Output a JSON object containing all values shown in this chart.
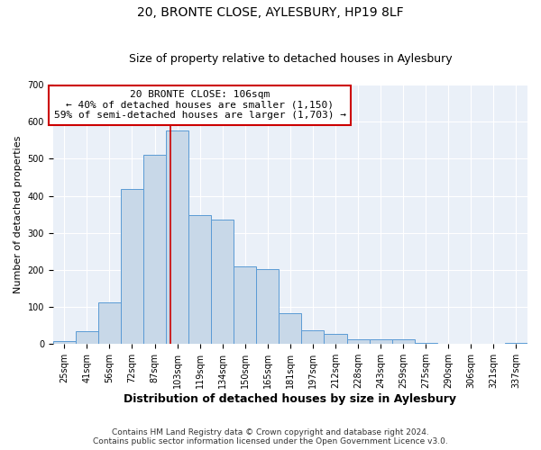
{
  "title": "20, BRONTE CLOSE, AYLESBURY, HP19 8LF",
  "subtitle": "Size of property relative to detached houses in Aylesbury",
  "xlabel": "Distribution of detached houses by size in Aylesbury",
  "ylabel": "Number of detached properties",
  "bins": [
    "25sqm",
    "41sqm",
    "56sqm",
    "72sqm",
    "87sqm",
    "103sqm",
    "119sqm",
    "134sqm",
    "150sqm",
    "165sqm",
    "181sqm",
    "197sqm",
    "212sqm",
    "228sqm",
    "243sqm",
    "259sqm",
    "275sqm",
    "290sqm",
    "306sqm",
    "321sqm",
    "337sqm"
  ],
  "values": [
    8,
    35,
    113,
    418,
    510,
    575,
    347,
    335,
    210,
    203,
    83,
    37,
    27,
    13,
    13,
    13,
    2,
    1,
    1,
    1,
    3
  ],
  "bar_color": "#c8d8e8",
  "bar_edge_color": "#5b9bd5",
  "annotation_title": "20 BRONTE CLOSE: 106sqm",
  "annotation_line1": "← 40% of detached houses are smaller (1,150)",
  "annotation_line2": "59% of semi-detached houses are larger (1,703) →",
  "box_edge_color": "#cc0000",
  "vline_color": "#cc0000",
  "ylim": [
    0,
    700
  ],
  "yticks": [
    0,
    100,
    200,
    300,
    400,
    500,
    600,
    700
  ],
  "background_color": "#eaf0f8",
  "footer1": "Contains HM Land Registry data © Crown copyright and database right 2024.",
  "footer2": "Contains public sector information licensed under the Open Government Licence v3.0.",
  "title_fontsize": 10,
  "subtitle_fontsize": 9,
  "xlabel_fontsize": 9,
  "ylabel_fontsize": 8,
  "tick_fontsize": 7,
  "annotation_fontsize": 8,
  "footer_fontsize": 6.5
}
